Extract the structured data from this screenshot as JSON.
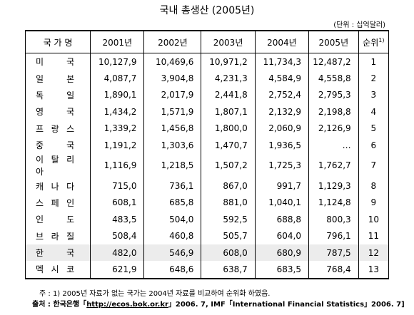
{
  "title": "국내 총생산 (2005년)",
  "unit": "(단위 : 십억달러)",
  "table": {
    "header": [
      "국 가 명",
      "2001년",
      "2002년",
      "2003년",
      "2004년",
      "2005년",
      "순위"
    ],
    "header_note": "1)",
    "rows": [
      [
        "미 국",
        "10,127,9",
        "10,469,6",
        "10,971,2",
        "11,734,3",
        "12,487,2",
        "1"
      ],
      [
        "일 본",
        "4,087,7",
        "3,904,8",
        "4,231,3",
        "4,584,9",
        "4,558,8",
        "2"
      ],
      [
        "독 일",
        "1,890,1",
        "2,017,9",
        "2,441,8",
        "2,752,4",
        "2,795,3",
        "3"
      ],
      [
        "영 국",
        "1,434,2",
        "1,571,9",
        "1,807,1",
        "2,132,9",
        "2,198,8",
        "4"
      ],
      [
        "프 랑 스",
        "1,339,2",
        "1,456,8",
        "1,800,0",
        "2,060,9",
        "2,126,9",
        "5"
      ],
      [
        "중 국",
        "1,191,2",
        "1,303,6",
        "1,470,7",
        "1,936,5",
        "…",
        "6"
      ],
      [
        "이 탈 리 아",
        "1,116,9",
        "1,218,5",
        "1,507,2",
        "1,725,3",
        "1,762,7",
        "7"
      ],
      [
        "캐 나 다",
        "715,0",
        "736,1",
        "867,0",
        "991,7",
        "1,129,3",
        "8"
      ],
      [
        "스 페 인",
        "608,1",
        "685,8",
        "881,0",
        "1,040,1",
        "1,124,8",
        "9"
      ],
      [
        "인 도",
        "483,5",
        "504,0",
        "592,5",
        "688,8",
        "800,3",
        "10"
      ],
      [
        "브 라 질",
        "508,4",
        "460,8",
        "505,7",
        "604,0",
        "796,1",
        "11"
      ],
      [
        "한 국",
        "482,0",
        "546,9",
        "608,0",
        "680,9",
        "787,5",
        "12"
      ],
      [
        "멕 시 코",
        "621,9",
        "648,6",
        "638,7",
        "683,5",
        "768,4",
        "13"
      ]
    ],
    "highlight_row": 11
  },
  "note": {
    "label": "주 :",
    "text": "1) 2005년 자료가 없는 국가는 2004년 자료를 비교하여 순위화 하였음."
  },
  "source": {
    "label": "출처 :",
    "prefix": "한국은행「",
    "link": "http://ecos.bok.or.kr",
    "suffix": "」2006. 7, IMF「International Financial Statistics」2006. 7]"
  }
}
